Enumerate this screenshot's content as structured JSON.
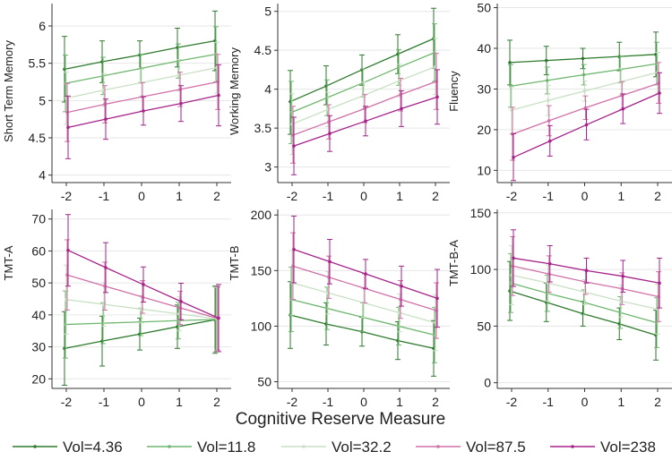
{
  "figure": {
    "shared_xlabel": "Cognitive Reserve Measure"
  },
  "legend": {
    "items": [
      {
        "label": "Vol=4.36",
        "color": "#2d7a2d"
      },
      {
        "label": "Vol=11.8",
        "color": "#6fb66f"
      },
      {
        "label": "Vol=32.2",
        "color": "#c9e0c4"
      },
      {
        "label": "Vol=87.5",
        "color": "#d070a8"
      },
      {
        "label": "Vol=238",
        "color": "#a6238a"
      }
    ]
  },
  "chart_data": [
    {
      "type": "line",
      "ylabel": "Short Term Memory",
      "x": [
        -2,
        -1,
        0,
        1,
        2
      ],
      "xticks": [
        "-2",
        "-1",
        "0",
        "1",
        "2"
      ],
      "ylim": [
        3.9,
        6.3
      ],
      "yticks": [
        4,
        4.5,
        5,
        5.5,
        6
      ],
      "yticklabels": [
        "4",
        "4.5",
        "5",
        "5.5",
        "6"
      ],
      "grid": true,
      "series": [
        {
          "name": "Vol=4.36",
          "values": [
            5.42,
            5.52,
            5.61,
            5.71,
            5.8
          ],
          "lower": [
            4.98,
            5.24,
            5.42,
            5.45,
            5.4
          ],
          "upper": [
            5.86,
            5.8,
            5.8,
            5.97,
            6.2
          ]
        },
        {
          "name": "Vol=11.8",
          "values": [
            5.23,
            5.33,
            5.43,
            5.53,
            5.62
          ],
          "lower": [
            4.85,
            5.08,
            5.24,
            5.3,
            5.25
          ],
          "upper": [
            5.61,
            5.58,
            5.62,
            5.76,
            5.99
          ]
        },
        {
          "name": "Vol=32.2",
          "values": [
            5.03,
            5.14,
            5.24,
            5.34,
            5.44
          ],
          "lower": [
            4.68,
            4.92,
            5.06,
            5.13,
            5.1
          ],
          "upper": [
            5.38,
            5.36,
            5.42,
            5.55,
            5.78
          ]
        },
        {
          "name": "Vol=87.5",
          "values": [
            4.84,
            4.95,
            5.05,
            5.15,
            5.25
          ],
          "lower": [
            4.45,
            4.7,
            4.86,
            4.92,
            4.88
          ],
          "upper": [
            5.23,
            5.2,
            5.24,
            5.38,
            5.62
          ]
        },
        {
          "name": "Vol=238",
          "values": [
            4.64,
            4.75,
            4.86,
            4.96,
            5.07
          ],
          "lower": [
            4.22,
            4.48,
            4.67,
            4.72,
            4.66
          ],
          "upper": [
            5.06,
            5.02,
            5.05,
            5.2,
            5.48
          ]
        }
      ]
    },
    {
      "type": "line",
      "ylabel": "Working Memory",
      "x": [
        -2,
        -1,
        0,
        1,
        2
      ],
      "xticks": [
        "-2",
        "-1",
        "0",
        "1",
        "2"
      ],
      "ylim": [
        2.8,
        5.1
      ],
      "yticks": [
        3,
        3.5,
        4,
        4.5,
        5
      ],
      "yticklabels": [
        "3",
        "3.5",
        "4",
        "4.5",
        "5"
      ],
      "grid": true,
      "series": [
        {
          "name": "Vol=4.36",
          "values": [
            3.84,
            4.04,
            4.25,
            4.45,
            4.65
          ],
          "lower": [
            3.42,
            3.8,
            4.05,
            4.2,
            4.27
          ],
          "upper": [
            4.24,
            4.3,
            4.44,
            4.7,
            5.04
          ]
        },
        {
          "name": "Vol=11.8",
          "values": [
            3.7,
            3.89,
            4.08,
            4.28,
            4.47
          ],
          "lower": [
            3.3,
            3.66,
            3.9,
            4.05,
            4.1
          ],
          "upper": [
            4.1,
            4.12,
            4.26,
            4.51,
            4.84
          ]
        },
        {
          "name": "Vol=32.2",
          "values": [
            3.55,
            3.74,
            3.92,
            4.11,
            4.29
          ],
          "lower": [
            3.16,
            3.52,
            3.75,
            3.9,
            3.93
          ],
          "upper": [
            3.94,
            3.96,
            4.09,
            4.32,
            4.65
          ]
        },
        {
          "name": "Vol=87.5",
          "values": [
            3.41,
            3.58,
            3.75,
            3.93,
            4.1
          ],
          "lower": [
            3.05,
            3.36,
            3.57,
            3.72,
            3.74
          ],
          "upper": [
            3.78,
            3.8,
            3.93,
            4.14,
            4.46
          ]
        },
        {
          "name": "Vol=238",
          "values": [
            3.27,
            3.43,
            3.59,
            3.75,
            3.9
          ],
          "lower": [
            2.9,
            3.2,
            3.4,
            3.52,
            3.55
          ],
          "upper": [
            3.64,
            3.66,
            3.78,
            3.98,
            4.25
          ]
        }
      ]
    },
    {
      "type": "line",
      "ylabel": "Fluency",
      "x": [
        -2,
        -1,
        0,
        1,
        2
      ],
      "xticks": [
        "-2",
        "-1",
        "0",
        "1",
        "2"
      ],
      "ylim": [
        7,
        51
      ],
      "yticks": [
        10,
        20,
        30,
        40,
        50
      ],
      "yticklabels": [
        "10",
        "20",
        "30",
        "40",
        "50"
      ],
      "grid": true,
      "series": [
        {
          "name": "Vol=4.36",
          "values": [
            36.5,
            37.0,
            37.5,
            38.0,
            38.5
          ],
          "lower": [
            31.0,
            33.5,
            35.0,
            34.5,
            33.0
          ],
          "upper": [
            42.0,
            40.5,
            40.0,
            41.5,
            44.0
          ]
        },
        {
          "name": "Vol=11.8",
          "values": [
            30.7,
            32.1,
            33.5,
            34.8,
            36.2
          ],
          "lower": [
            25.5,
            28.8,
            31.0,
            31.5,
            31.0
          ],
          "upper": [
            36.0,
            35.4,
            36.0,
            38.1,
            41.5
          ]
        },
        {
          "name": "Vol=32.2",
          "values": [
            24.8,
            27.2,
            29.5,
            31.8,
            34.1
          ],
          "lower": [
            19.0,
            23.5,
            27.0,
            28.5,
            29.0
          ],
          "upper": [
            30.5,
            30.9,
            32.0,
            35.1,
            39.0
          ]
        },
        {
          "name": "Vol=87.5",
          "values": [
            18.9,
            22.2,
            25.4,
            28.4,
            31.4
          ],
          "lower": [
            12.5,
            18.5,
            22.5,
            25.0,
            26.5
          ],
          "upper": [
            25.5,
            25.9,
            28.3,
            31.8,
            36.5
          ]
        },
        {
          "name": "Vol=238",
          "values": [
            13.2,
            17.2,
            21.2,
            25.1,
            29.0
          ],
          "lower": [
            7.5,
            13.5,
            17.5,
            21.5,
            24.0
          ],
          "upper": [
            19.0,
            21.0,
            25.0,
            28.8,
            34.0
          ]
        }
      ]
    },
    {
      "type": "line",
      "ylabel": "TMT-A",
      "x": [
        -2,
        -1,
        0,
        1,
        2
      ],
      "xticks": [
        "-2",
        "-1",
        "0",
        "1",
        "2"
      ],
      "ylim": [
        17,
        73
      ],
      "yticks": [
        20,
        30,
        40,
        50,
        60,
        70
      ],
      "yticklabels": [
        "20",
        "30",
        "40",
        "50",
        "60",
        "70"
      ],
      "grid": true,
      "series": [
        {
          "name": "Vol=4.36",
          "values": [
            29.5,
            31.8,
            34.0,
            36.3,
            38.5
          ],
          "lower": [
            18.0,
            24.0,
            29.0,
            29.5,
            28.0
          ],
          "upper": [
            41.0,
            39.6,
            39.0,
            43.1,
            49.0
          ]
        },
        {
          "name": "Vol=11.8",
          "values": [
            37.0,
            37.4,
            37.8,
            38.2,
            38.6
          ],
          "lower": [
            26.5,
            31.0,
            33.5,
            32.5,
            28.5
          ],
          "upper": [
            47.5,
            43.8,
            42.1,
            43.9,
            48.7
          ]
        },
        {
          "name": "Vol=32.2",
          "values": [
            44.8,
            43.3,
            41.8,
            40.3,
            38.8
          ],
          "lower": [
            34.0,
            36.5,
            37.5,
            35.0,
            29.0
          ],
          "upper": [
            55.6,
            50.1,
            46.1,
            45.6,
            48.6
          ]
        },
        {
          "name": "Vol=87.5",
          "values": [
            52.5,
            49.0,
            45.6,
            42.2,
            38.9
          ],
          "lower": [
            41.5,
            41.5,
            40.5,
            37.0,
            29.0
          ],
          "upper": [
            63.5,
            56.5,
            50.7,
            47.4,
            48.8
          ]
        },
        {
          "name": "Vol=238",
          "values": [
            60.2,
            54.8,
            49.5,
            44.2,
            39.0
          ],
          "lower": [
            49.0,
            47.0,
            44.0,
            38.5,
            28.5
          ],
          "upper": [
            71.4,
            62.6,
            55.0,
            49.9,
            49.5
          ]
        }
      ]
    },
    {
      "type": "line",
      "ylabel": "TMT-B",
      "x": [
        -2,
        -1,
        0,
        1,
        2
      ],
      "xticks": [
        "-2",
        "-1",
        "0",
        "1",
        "2"
      ],
      "ylim": [
        44,
        205
      ],
      "yticks": [
        50,
        100,
        150,
        200
      ],
      "yticklabels": [
        "50",
        "100",
        "150",
        "200"
      ],
      "grid": true,
      "series": [
        {
          "name": "Vol=4.36",
          "values": [
            110,
            102,
            95,
            87,
            80
          ],
          "lower": [
            80,
            83,
            82,
            70,
            55
          ],
          "upper": [
            140,
            121,
            108,
            104,
            105
          ]
        },
        {
          "name": "Vol=11.8",
          "values": [
            124,
            116,
            108,
            100,
            92
          ],
          "lower": [
            95,
            97,
            95,
            83,
            67
          ],
          "upper": [
            153,
            135,
            121,
            117,
            117
          ]
        },
        {
          "name": "Vol=32.2",
          "values": [
            139,
            130,
            121,
            112,
            103
          ],
          "lower": [
            110,
            111,
            108,
            95,
            78
          ],
          "upper": [
            168,
            149,
            134,
            129,
            128
          ]
        },
        {
          "name": "Vol=87.5",
          "values": [
            154,
            144,
            134,
            124,
            114
          ],
          "lower": [
            124,
            125,
            121,
            107,
            89
          ],
          "upper": [
            184,
            163,
            147,
            141,
            139
          ]
        },
        {
          "name": "Vol=238",
          "values": [
            169,
            158,
            147,
            136,
            125
          ],
          "lower": [
            139,
            138,
            134,
            118,
            99
          ],
          "upper": [
            199,
            178,
            160,
            154,
            151
          ]
        }
      ]
    },
    {
      "type": "line",
      "ylabel": "TMT-B-A",
      "x": [
        -2,
        -1,
        0,
        1,
        2
      ],
      "xticks": [
        "-2",
        "-1",
        "0",
        "1",
        "2"
      ],
      "ylim": [
        -5,
        153
      ],
      "yticks": [
        0,
        50,
        100,
        150
      ],
      "yticklabels": [
        "0",
        "50",
        "100",
        "150"
      ],
      "grid": true,
      "series": [
        {
          "name": "Vol=4.36",
          "values": [
            81,
            71,
            61,
            52,
            42
          ],
          "lower": [
            55,
            54,
            50,
            38,
            20
          ],
          "upper": [
            107,
            88,
            72,
            66,
            64
          ]
        },
        {
          "name": "Vol=11.8",
          "values": [
            88,
            79,
            71,
            62,
            53
          ],
          "lower": [
            62,
            63,
            60,
            48,
            31
          ],
          "upper": [
            114,
            95,
            82,
            76,
            75
          ]
        },
        {
          "name": "Vol=32.2",
          "values": [
            95,
            88,
            80,
            72,
            65
          ],
          "lower": [
            69,
            72,
            69,
            58,
            43
          ],
          "upper": [
            121,
            104,
            91,
            86,
            87
          ]
        },
        {
          "name": "Vol=87.5",
          "values": [
            103,
            96,
            89,
            83,
            76
          ],
          "lower": [
            77,
            80,
            78,
            69,
            54
          ],
          "upper": [
            129,
            112,
            100,
            97,
            98
          ]
        },
        {
          "name": "Vol=238",
          "values": [
            110,
            105,
            99,
            94,
            88
          ],
          "lower": [
            85,
            89,
            88,
            80,
            66
          ],
          "upper": [
            135,
            121,
            110,
            108,
            110
          ]
        }
      ]
    }
  ]
}
